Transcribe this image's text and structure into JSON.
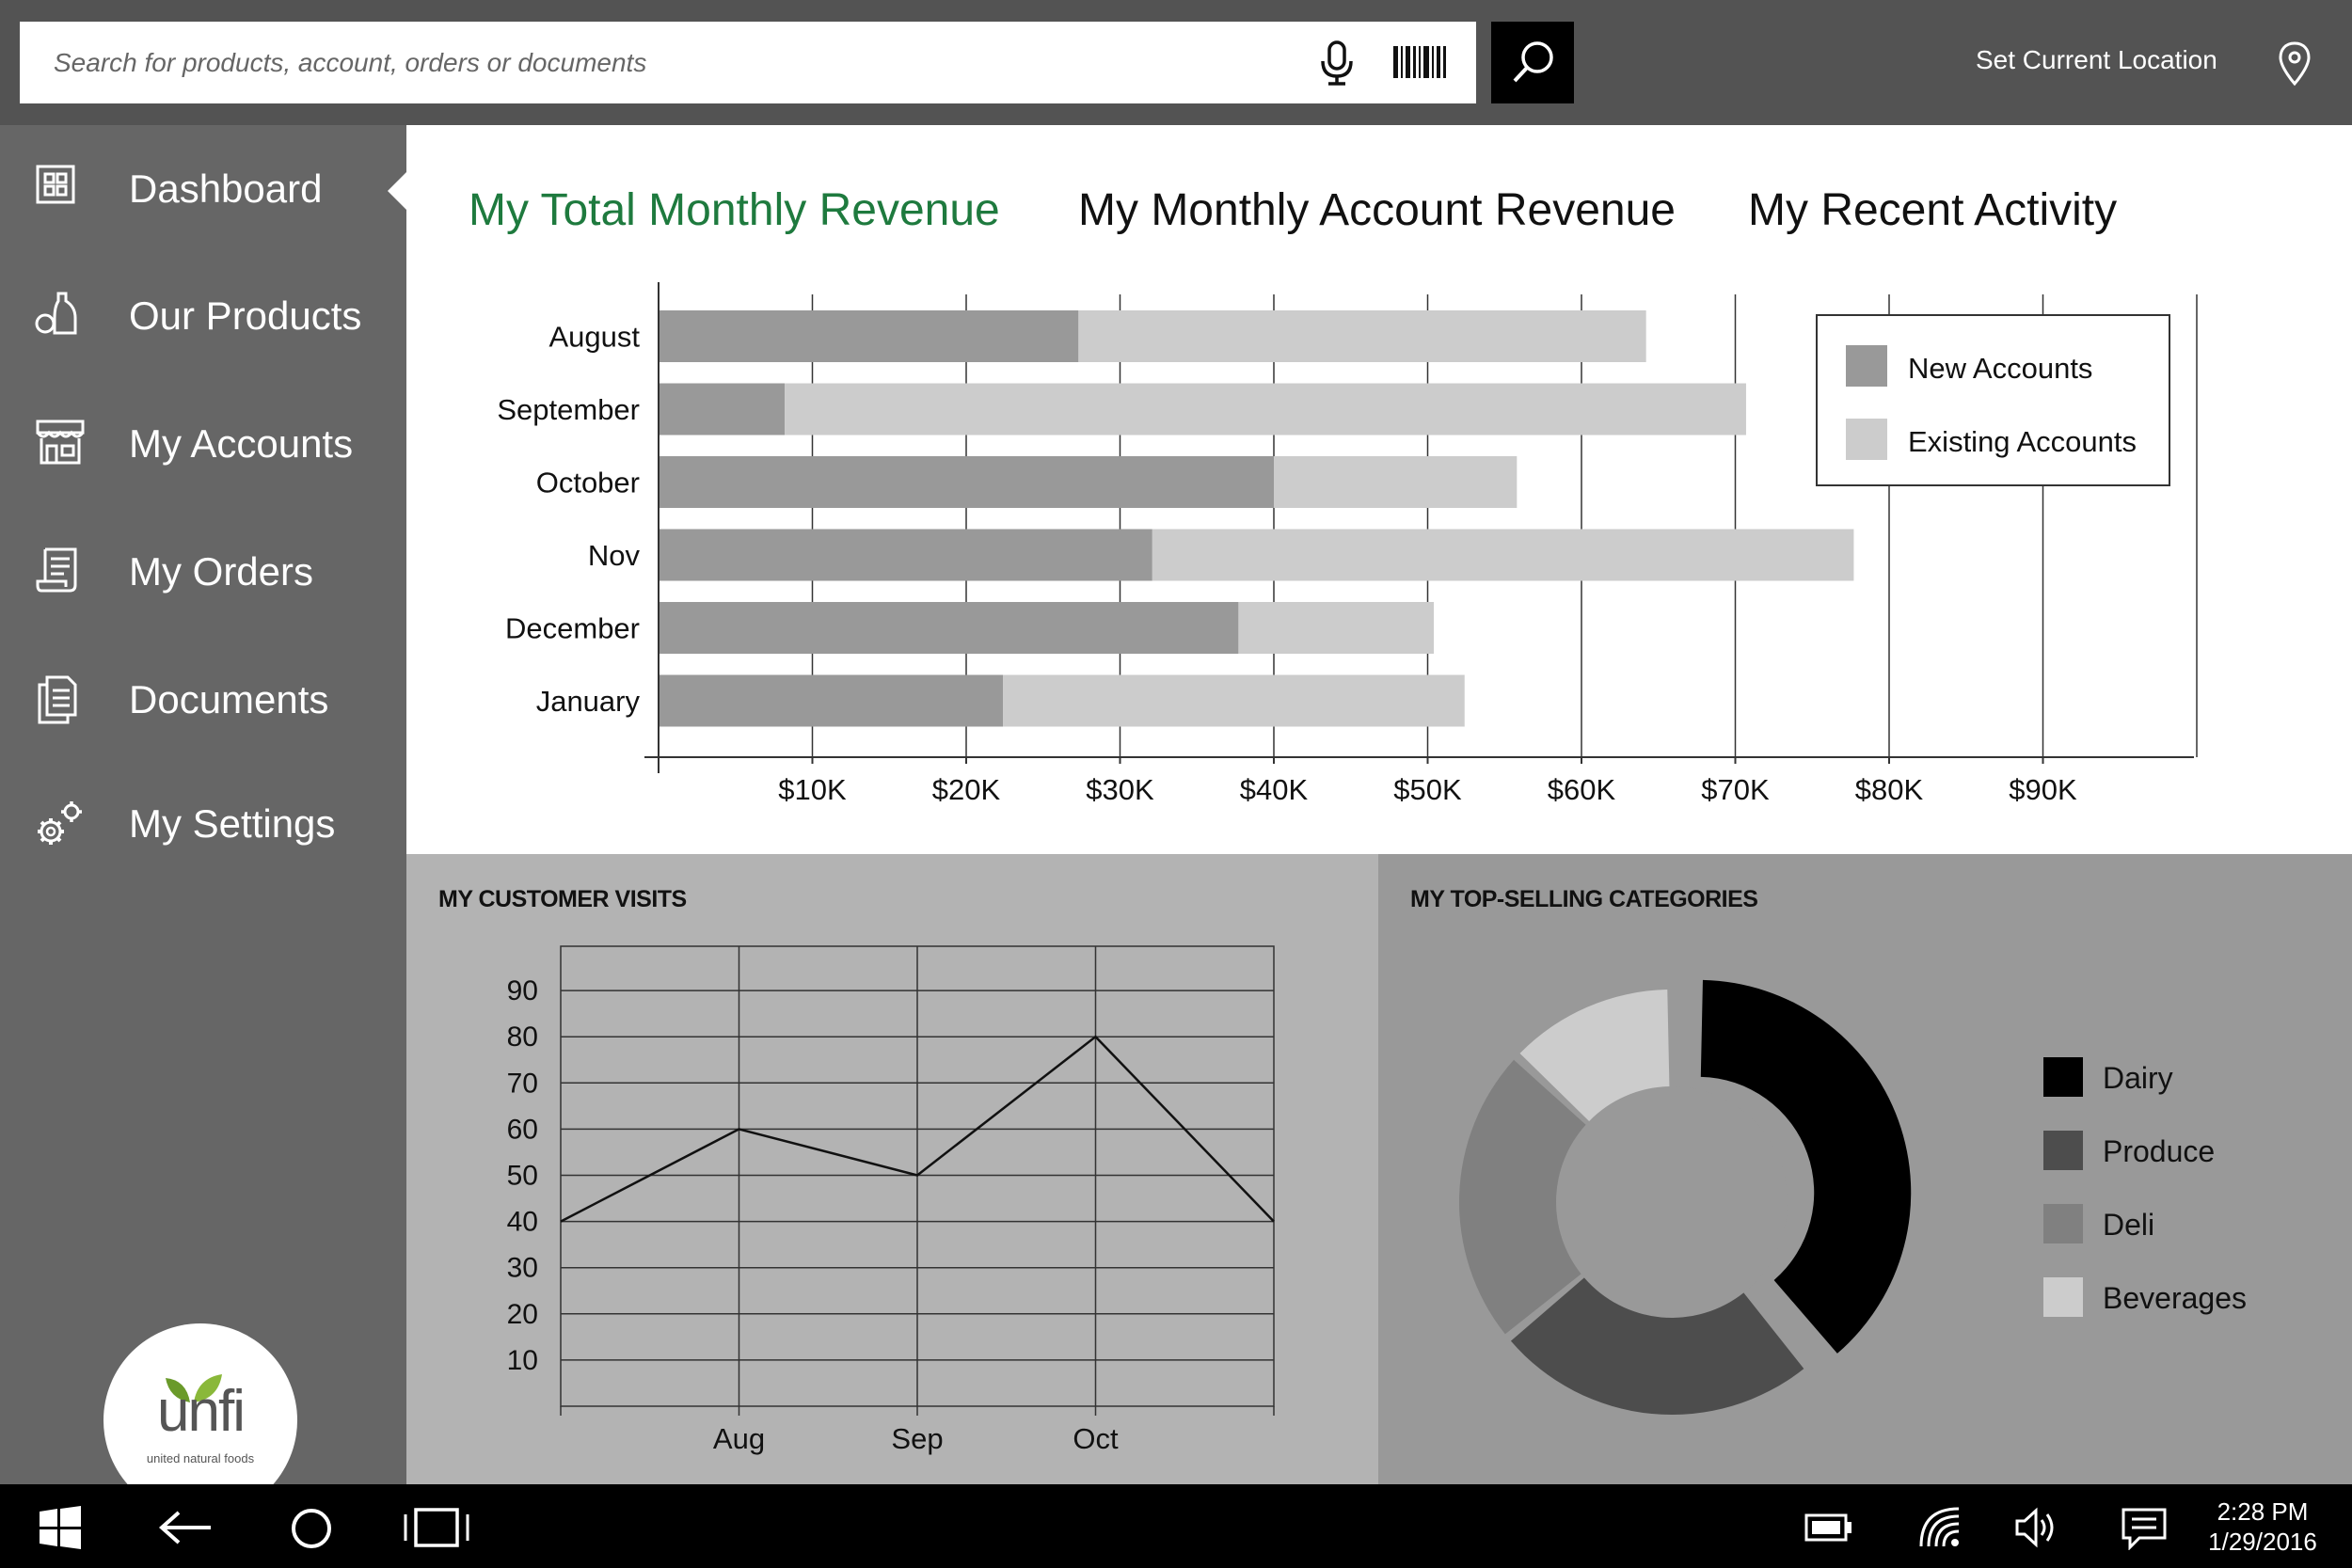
{
  "search": {
    "placeholder": "Search for products, account, orders or documents"
  },
  "location": {
    "label": "Set Current Location"
  },
  "icons": {
    "mic": "microphone-icon",
    "barcode": "barcode-icon",
    "search": "magnifier-icon",
    "location": "map-pin-icon"
  },
  "sidebar": {
    "items": [
      {
        "label": "Dashboard",
        "icon": "dashboard-icon",
        "active": true
      },
      {
        "label": "Our Products",
        "icon": "products-icon"
      },
      {
        "label": "My Accounts",
        "icon": "storefront-icon"
      },
      {
        "label": "My Orders",
        "icon": "orders-receipt-icon"
      },
      {
        "label": "Documents",
        "icon": "documents-icon"
      },
      {
        "label": "My Settings",
        "icon": "gears-icon"
      }
    ],
    "logo": {
      "word": "unfi",
      "sub": "united natural foods"
    }
  },
  "tabs": [
    {
      "label": "My Total Monthly Revenue",
      "active": true
    },
    {
      "label": "My Monthly Account Revenue"
    },
    {
      "label": "My Recent Activity"
    }
  ],
  "colors": {
    "active_tab": "#1e7a3e",
    "new_accounts": "#999999",
    "existing_accounts": "#cccccc"
  },
  "panels": {
    "visits_title": "MY CUSTOMER VISITS",
    "categories_title": "MY TOP-SELLING CATEGORIES"
  },
  "taskbar": {
    "time": "2:28 PM",
    "date": "1/29/2016"
  },
  "chart_data": [
    {
      "type": "bar",
      "orientation": "horizontal",
      "stacked": true,
      "categories": [
        "August",
        "September",
        "October",
        "Nov",
        "December",
        "January"
      ],
      "series": [
        {
          "name": "New Accounts",
          "values": [
            27300,
            8200,
            40000,
            32100,
            37700,
            22400
          ]
        },
        {
          "name": "Existing Accounts",
          "values": [
            36900,
            62500,
            15800,
            45600,
            12700,
            30000
          ]
        }
      ],
      "xlim": [
        0,
        100000
      ],
      "xticks": [
        10000,
        20000,
        30000,
        40000,
        50000,
        60000,
        70000,
        80000,
        90000
      ],
      "xtick_labels": [
        "$10K",
        "$20K",
        "$30K",
        "$40K",
        "$50K",
        "$60K",
        "$70K",
        "$80K",
        "$90K"
      ],
      "legend": "top-right",
      "grid": true
    },
    {
      "type": "line",
      "title": "MY CUSTOMER VISITS",
      "x": [
        0,
        1,
        2,
        3,
        4
      ],
      "x_tick_labels": [
        "",
        "Aug",
        "Sep",
        "Oct",
        ""
      ],
      "y": [
        40,
        60,
        50,
        80,
        40
      ],
      "yticks": [
        10,
        20,
        30,
        40,
        50,
        60,
        70,
        80,
        90
      ],
      "ylim": [
        0,
        100
      ],
      "grid": true
    },
    {
      "type": "pie",
      "style": "donut",
      "title": "MY TOP-SELLING CATEGORIES",
      "labels": [
        "Dairy",
        "Produce",
        "Deli",
        "Beverages"
      ],
      "values": [
        39,
        25,
        23,
        13
      ],
      "colors": [
        "#000000",
        "#4d4d4d",
        "#808080",
        "#cccccc"
      ],
      "legend": "right"
    }
  ]
}
